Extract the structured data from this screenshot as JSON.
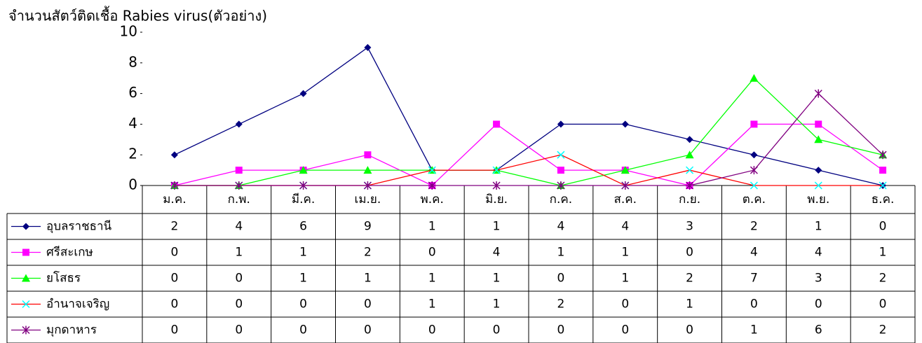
{
  "chart_data": {
    "type": "line",
    "title": "จำนวนสัตว์ติดเชื้อ Rabies virus(ตัวอย่าง)",
    "categories": [
      "ม.ค.",
      "ก.พ.",
      "มี.ค.",
      "เม.ย.",
      "พ.ค.",
      "มิ.ย.",
      "ก.ค.",
      "ส.ค.",
      "ก.ย.",
      "ต.ค.",
      "พ.ย.",
      "ธ.ค."
    ],
    "ylim": [
      0,
      10
    ],
    "yticks": [
      0,
      2,
      4,
      6,
      8,
      10
    ],
    "series": [
      {
        "name": "อุบลราชธานี",
        "color": "#000080",
        "marker": "diamond",
        "marker_color": "#000080",
        "values": [
          2,
          4,
          6,
          9,
          1,
          1,
          4,
          4,
          3,
          2,
          1,
          0
        ]
      },
      {
        "name": "ศรีสะเกษ",
        "color": "#ff00ff",
        "marker": "square",
        "marker_color": "#ff00ff",
        "values": [
          0,
          1,
          1,
          2,
          0,
          4,
          1,
          1,
          0,
          4,
          4,
          1
        ]
      },
      {
        "name": "ยโสธร",
        "color": "#00ff00",
        "marker": "triangle",
        "marker_color": "#00ff00",
        "values": [
          0,
          0,
          1,
          1,
          1,
          1,
          0,
          1,
          2,
          7,
          3,
          2
        ]
      },
      {
        "name": "อำนาจเจริญ",
        "color": "#ff0000",
        "marker": "x",
        "marker_color": "#00ffff",
        "values": [
          0,
          0,
          0,
          0,
          1,
          1,
          2,
          0,
          1,
          0,
          0,
          0
        ]
      },
      {
        "name": "มุกดาหาร",
        "color": "#800080",
        "marker": "star",
        "marker_color": "#800080",
        "values": [
          0,
          0,
          0,
          0,
          0,
          0,
          0,
          0,
          0,
          1,
          6,
          2
        ]
      }
    ]
  }
}
